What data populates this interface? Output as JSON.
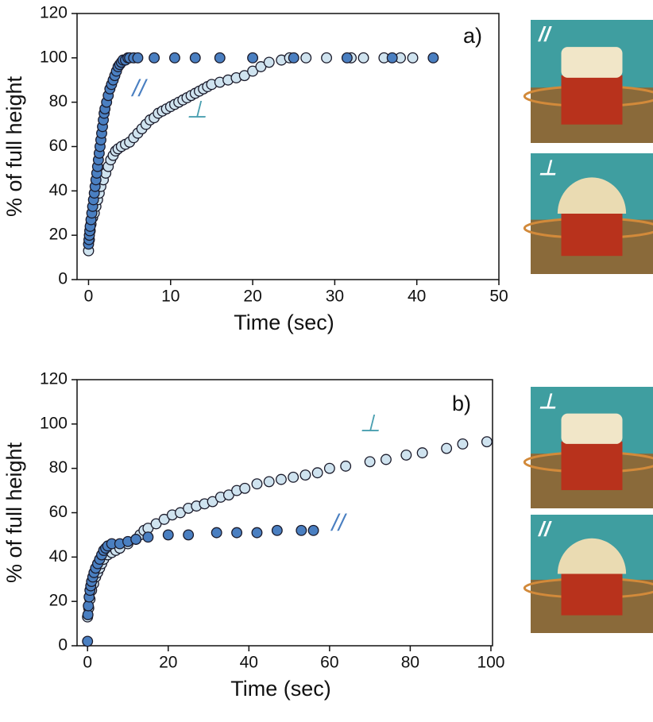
{
  "chart_data": [
    {
      "type": "scatter",
      "panel_label": "a)",
      "xlabel": "Time (sec)",
      "ylabel": "% of full height",
      "xlim": [
        -1.4,
        50
      ],
      "xticks": [
        0,
        10,
        20,
        30,
        40,
        50
      ],
      "ylim": [
        0,
        120
      ],
      "yticks": [
        0,
        20,
        40,
        60,
        80,
        100,
        120
      ],
      "series": [
        {
          "name": "⊥",
          "color": "#cfe3ef",
          "label_color": "#4a9fb0",
          "x": [
            0,
            0.1,
            0.2,
            0.3,
            0.5,
            0.7,
            0.9,
            1.1,
            1.3,
            1.5,
            1.8,
            2.1,
            2.4,
            2.7,
            3.0,
            3.3,
            3.6,
            4.0,
            4.5,
            5.0,
            5.5,
            6.0,
            6.5,
            7.0,
            7.5,
            8.0,
            8.5,
            9.0,
            9.5,
            10,
            10.5,
            11,
            11.5,
            12,
            12.5,
            13,
            13.5,
            14,
            14.5,
            15,
            16,
            17,
            18,
            19,
            20,
            21,
            22,
            23.5,
            24.5,
            26.5,
            29,
            32,
            33.5,
            36,
            38,
            39.5
          ],
          "values": [
            13,
            18,
            22,
            25,
            28,
            30,
            33,
            36,
            39,
            42,
            45,
            48,
            51,
            54,
            56,
            58,
            59,
            60,
            61,
            62,
            64,
            66,
            68,
            70,
            72,
            73,
            75,
            76,
            77,
            78,
            79,
            80,
            81,
            82,
            83,
            84,
            85,
            86,
            87,
            88,
            89,
            90,
            91,
            92,
            94,
            96,
            98,
            99,
            100,
            100,
            100,
            100,
            100,
            100,
            100,
            100
          ]
        },
        {
          "name": "//",
          "color": "#4a7fc1",
          "label_color": "#4a7fc1",
          "x": [
            0,
            0.05,
            0.1,
            0.15,
            0.2,
            0.3,
            0.4,
            0.5,
            0.6,
            0.7,
            0.8,
            0.9,
            1.0,
            1.1,
            1.2,
            1.3,
            1.4,
            1.5,
            1.6,
            1.7,
            1.8,
            1.9,
            2.0,
            2.2,
            2.4,
            2.6,
            2.8,
            3.0,
            3.2,
            3.4,
            3.6,
            3.8,
            4.0,
            4.2,
            4.5,
            4.8,
            5.0,
            5.5,
            6,
            8,
            10.5,
            13,
            16,
            20,
            25,
            31.5,
            37,
            42
          ],
          "values": [
            16,
            18,
            20,
            22,
            24,
            27,
            30,
            33,
            36,
            39,
            42,
            45,
            48,
            51,
            54,
            57,
            60,
            63,
            66,
            69,
            72,
            75,
            77,
            80,
            83,
            86,
            88,
            90,
            92,
            94,
            96,
            97,
            98,
            99,
            99,
            100,
            100,
            100,
            100,
            100,
            100,
            100,
            100,
            100,
            100,
            100,
            100,
            100
          ]
        }
      ],
      "photo_labels": [
        "//",
        "⊥"
      ]
    },
    {
      "type": "scatter",
      "panel_label": "b)",
      "xlabel": "Time (sec)",
      "ylabel": "% of full height",
      "xlim": [
        -2.6,
        100.4
      ],
      "xticks": [
        0,
        20,
        40,
        60,
        80,
        100
      ],
      "ylim": [
        0,
        120
      ],
      "yticks": [
        0,
        20,
        40,
        60,
        80,
        100,
        120
      ],
      "series": [
        {
          "name": "⊥",
          "color": "#cfe3ef",
          "label_color": "#4a9fb0",
          "x": [
            0,
            0.3,
            0.6,
            1,
            1.5,
            2,
            2.5,
            3,
            3.5,
            4,
            5,
            6,
            7,
            8,
            10,
            12,
            13,
            14,
            15,
            17,
            19,
            21,
            23,
            25,
            27,
            29,
            31,
            33,
            35,
            37,
            39,
            42,
            45,
            48,
            51,
            54,
            57,
            60,
            64,
            70,
            74,
            79,
            83,
            89,
            93,
            99
          ],
          "values": [
            13,
            17,
            21,
            25,
            28,
            31,
            33,
            35,
            37,
            39,
            41,
            42,
            43,
            44,
            46,
            48,
            50,
            52,
            53,
            55,
            57,
            59,
            60,
            62,
            63,
            64,
            65,
            67,
            68,
            70,
            71,
            73,
            74,
            75,
            76,
            77,
            78,
            80,
            81,
            83,
            84,
            86,
            87,
            89,
            91,
            92
          ]
        },
        {
          "name": "//",
          "color": "#4a7fc1",
          "label_color": "#4a7fc1",
          "x": [
            0,
            0.1,
            0.2,
            0.4,
            0.6,
            0.8,
            1,
            1.3,
            1.6,
            2,
            2.5,
            3,
            3.5,
            4,
            4.5,
            5,
            6,
            8,
            10,
            12,
            15,
            20,
            25,
            32,
            37,
            42,
            47,
            53,
            56
          ],
          "values": [
            2,
            14,
            18,
            22,
            25,
            27,
            29,
            31,
            33,
            35,
            37,
            39,
            41,
            43,
            44,
            45,
            46,
            46,
            47,
            48,
            49,
            50,
            50,
            51,
            51,
            51,
            52,
            52,
            52
          ]
        }
      ],
      "photo_labels": [
        "⊥",
        "//"
      ]
    }
  ]
}
